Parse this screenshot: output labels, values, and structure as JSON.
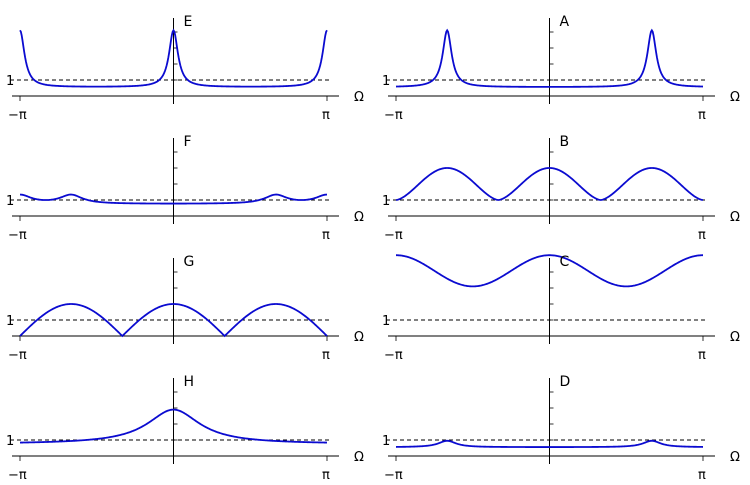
{
  "axis": {
    "x_label": "Ω",
    "x_min_label": "−π",
    "x_max_label": "π",
    "y_ref_label": "1"
  },
  "colors": {
    "curve": "#0b0bd0",
    "axis": "#000000"
  },
  "panels": [
    {
      "id": "E",
      "label": "E"
    },
    {
      "id": "A",
      "label": "A"
    },
    {
      "id": "F",
      "label": "F"
    },
    {
      "id": "B",
      "label": "B"
    },
    {
      "id": "G",
      "label": "G"
    },
    {
      "id": "C",
      "label": "C"
    },
    {
      "id": "H",
      "label": "H"
    },
    {
      "id": "D",
      "label": "D"
    }
  ]
}
